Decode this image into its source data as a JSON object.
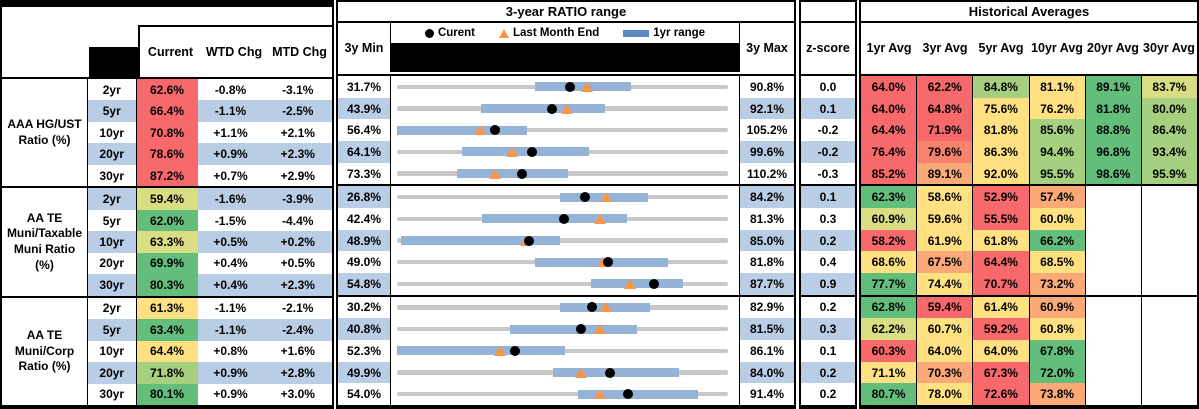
{
  "palette": {
    "r": "#F8696B",
    "ro": "#F9826E",
    "o": "#FBA977",
    "y": "#FFE182",
    "yg": "#D9DE82",
    "lg": "#A6D07F",
    "g": "#63BE7B",
    "rowBlue": "#B9CDE5",
    "barBlue": "#95B3D7",
    "trackGray": "#C8C8C8",
    "lmeOrange": "#F79646",
    "black": "#000000"
  },
  "header": {
    "range_title": "3-year RATIO range",
    "hist_title": "Historical Averages",
    "col_current": "Current",
    "col_wtd": "WTD Chg",
    "col_mtd": "MTD Chg",
    "col_3y_min": "3y Min",
    "col_3y_max": "3y Max",
    "col_zscore": "z-score",
    "avg_cols": [
      "1yr Avg",
      "3yr Avg",
      "5yr Avg",
      "10yr Avg",
      "20yr Avg",
      "30yr Avg"
    ],
    "legend": {
      "current": "Curent",
      "lme": "Last Month End",
      "range": "1yr range"
    }
  },
  "groups": [
    {
      "label": "AAA HG/UST\nRatio (%)",
      "rows": [
        {
          "tenor": "2yr",
          "current": "62.6%",
          "cc": "r",
          "wtd": "-0.8%",
          "mtd": "-3.1%",
          "min": "31.7%",
          "max": "90.8%",
          "z": "0.0",
          "chart": {
            "min": 31.7,
            "max": 90.8,
            "cur": 62.6,
            "lme": 65.6,
            "lo": 56.4,
            "hi": 73.5
          },
          "avgs": [
            {
              "t": "64.0%",
              "c": "r"
            },
            {
              "t": "62.2%",
              "c": "r"
            },
            {
              "t": "84.8%",
              "c": "lg"
            },
            {
              "t": "81.1%",
              "c": "y"
            },
            {
              "t": "89.1%",
              "c": "g"
            },
            {
              "t": "83.7%",
              "c": "yg"
            }
          ]
        },
        {
          "tenor": "5yr",
          "current": "66.4%",
          "cc": "r",
          "wtd": "-1.1%",
          "mtd": "-2.5%",
          "min": "43.9%",
          "max": "92.1%",
          "z": "0.1",
          "chart": {
            "min": 43.9,
            "max": 92.1,
            "cur": 66.4,
            "lme": 68.6,
            "lo": 56.2,
            "hi": 74.2
          },
          "avgs": [
            {
              "t": "64.0%",
              "c": "r"
            },
            {
              "t": "64.8%",
              "c": "r"
            },
            {
              "t": "75.6%",
              "c": "y"
            },
            {
              "t": "76.2%",
              "c": "y"
            },
            {
              "t": "81.8%",
              "c": "g"
            },
            {
              "t": "80.0%",
              "c": "lg"
            }
          ]
        },
        {
          "tenor": "10yr",
          "current": "70.8%",
          "cc": "r",
          "wtd": "+1.1%",
          "mtd": "+2.1%",
          "min": "56.4%",
          "max": "105.2%",
          "z": "-0.2",
          "chart": {
            "min": 56.4,
            "max": 105.2,
            "cur": 70.8,
            "lme": 68.7,
            "lo": 56.4,
            "hi": 75.5
          },
          "avgs": [
            {
              "t": "64.4%",
              "c": "r"
            },
            {
              "t": "71.9%",
              "c": "r"
            },
            {
              "t": "81.8%",
              "c": "y"
            },
            {
              "t": "85.6%",
              "c": "lg"
            },
            {
              "t": "88.8%",
              "c": "g"
            },
            {
              "t": "86.4%",
              "c": "lg"
            }
          ]
        },
        {
          "tenor": "20yr",
          "current": "78.6%",
          "cc": "r",
          "wtd": "+0.9%",
          "mtd": "+2.3%",
          "min": "64.1%",
          "max": "99.6%",
          "z": "-0.2",
          "chart": {
            "min": 64.1,
            "max": 99.6,
            "cur": 78.6,
            "lme": 76.4,
            "lo": 71.1,
            "hi": 84.7
          },
          "avgs": [
            {
              "t": "76.4%",
              "c": "r"
            },
            {
              "t": "79.6%",
              "c": "ro"
            },
            {
              "t": "86.3%",
              "c": "y"
            },
            {
              "t": "94.4%",
              "c": "lg"
            },
            {
              "t": "96.8%",
              "c": "g"
            },
            {
              "t": "93.4%",
              "c": "lg"
            }
          ]
        },
        {
          "tenor": "30yr",
          "current": "87.2%",
          "cc": "r",
          "wtd": "+0.7%",
          "mtd": "+2.9%",
          "min": "73.3%",
          "max": "110.2%",
          "z": "-0.3",
          "chart": {
            "min": 73.3,
            "max": 110.2,
            "cur": 87.2,
            "lme": 84.2,
            "lo": 80.0,
            "hi": 92.4
          },
          "avgs": [
            {
              "t": "85.2%",
              "c": "r"
            },
            {
              "t": "89.1%",
              "c": "o"
            },
            {
              "t": "92.0%",
              "c": "y"
            },
            {
              "t": "95.5%",
              "c": "lg"
            },
            {
              "t": "98.6%",
              "c": "g"
            },
            {
              "t": "95.9%",
              "c": "lg"
            }
          ]
        }
      ]
    },
    {
      "label": "AA TE\nMuni/Taxable\nMuni Ratio\n(%)",
      "rows": [
        {
          "tenor": "2yr",
          "current": "59.4%",
          "cc": "yg",
          "wtd": "-1.6%",
          "mtd": "-3.9%",
          "min": "26.8%",
          "max": "84.2%",
          "z": "0.1",
          "chart": {
            "min": 26.8,
            "max": 84.2,
            "cur": 59.4,
            "lme": 63.1,
            "lo": 55.0,
            "hi": 70.4
          },
          "avgs": [
            {
              "t": "62.3%",
              "c": "g"
            },
            {
              "t": "58.6%",
              "c": "y"
            },
            {
              "t": "52.9%",
              "c": "r"
            },
            {
              "t": "57.4%",
              "c": "o"
            },
            {
              "t": "",
              "c": null
            },
            {
              "t": "",
              "c": null
            }
          ]
        },
        {
          "tenor": "5yr",
          "current": "62.0%",
          "cc": "g",
          "wtd": "-1.5%",
          "mtd": "-4.4%",
          "min": "42.4%",
          "max": "81.3%",
          "z": "0.3",
          "chart": {
            "min": 42.4,
            "max": 81.3,
            "cur": 62.0,
            "lme": 66.2,
            "lo": 52.4,
            "hi": 69.4
          },
          "avgs": [
            {
              "t": "60.9%",
              "c": "yg"
            },
            {
              "t": "59.6%",
              "c": "y"
            },
            {
              "t": "55.5%",
              "c": "r"
            },
            {
              "t": "60.0%",
              "c": "y"
            },
            {
              "t": "",
              "c": null
            },
            {
              "t": "",
              "c": null
            }
          ]
        },
        {
          "tenor": "10yr",
          "current": "63.3%",
          "cc": "yg",
          "wtd": "+0.5%",
          "mtd": "+0.2%",
          "min": "48.9%",
          "max": "85.0%",
          "z": "0.2",
          "chart": {
            "min": 48.9,
            "max": 85.0,
            "cur": 63.3,
            "lme": 63.0,
            "lo": 49.3,
            "hi": 66.7
          },
          "avgs": [
            {
              "t": "58.2%",
              "c": "r"
            },
            {
              "t": "61.9%",
              "c": "y"
            },
            {
              "t": "61.8%",
              "c": "y"
            },
            {
              "t": "66.2%",
              "c": "g"
            },
            {
              "t": "",
              "c": null
            },
            {
              "t": "",
              "c": null
            }
          ]
        },
        {
          "tenor": "20yr",
          "current": "69.9%",
          "cc": "g",
          "wtd": "+0.4%",
          "mtd": "+0.5%",
          "min": "49.0%",
          "max": "81.8%",
          "z": "0.4",
          "chart": {
            "min": 49.0,
            "max": 81.8,
            "cur": 69.9,
            "lme": 69.4,
            "lo": 62.7,
            "hi": 75.9
          },
          "avgs": [
            {
              "t": "68.6%",
              "c": "y"
            },
            {
              "t": "67.5%",
              "c": "o"
            },
            {
              "t": "64.4%",
              "c": "r"
            },
            {
              "t": "68.5%",
              "c": "y"
            },
            {
              "t": "",
              "c": null
            },
            {
              "t": "",
              "c": null
            }
          ]
        },
        {
          "tenor": "30yr",
          "current": "80.3%",
          "cc": "g",
          "wtd": "+0.4%",
          "mtd": "+2.3%",
          "min": "54.8%",
          "max": "87.7%",
          "z": "0.9",
          "chart": {
            "min": 54.8,
            "max": 87.7,
            "cur": 80.3,
            "lme": 78.0,
            "lo": 74.1,
            "hi": 83.2
          },
          "avgs": [
            {
              "t": "77.7%",
              "c": "g"
            },
            {
              "t": "74.4%",
              "c": "y"
            },
            {
              "t": "70.7%",
              "c": "r"
            },
            {
              "t": "73.2%",
              "c": "o"
            },
            {
              "t": "",
              "c": null
            },
            {
              "t": "",
              "c": null
            }
          ]
        }
      ]
    },
    {
      "label": "AA TE\nMuni/Corp\nRatio (%)",
      "rows": [
        {
          "tenor": "2yr",
          "current": "61.3%",
          "cc": "y",
          "wtd": "-1.1%",
          "mtd": "-2.1%",
          "min": "30.2%",
          "max": "82.9%",
          "z": "0.2",
          "chart": {
            "min": 30.2,
            "max": 82.9,
            "cur": 61.3,
            "lme": 63.4,
            "lo": 56.2,
            "hi": 70.5
          },
          "avgs": [
            {
              "t": "62.8%",
              "c": "g"
            },
            {
              "t": "59.4%",
              "c": "r"
            },
            {
              "t": "61.4%",
              "c": "y"
            },
            {
              "t": "60.9%",
              "c": "o"
            },
            {
              "t": "",
              "c": null
            },
            {
              "t": "",
              "c": null
            }
          ]
        },
        {
          "tenor": "5yr",
          "current": "63.4%",
          "cc": "g",
          "wtd": "-1.1%",
          "mtd": "-2.4%",
          "min": "40.8%",
          "max": "81.5%",
          "z": "0.3",
          "chart": {
            "min": 40.8,
            "max": 81.5,
            "cur": 63.4,
            "lme": 65.7,
            "lo": 54.7,
            "hi": 70.3
          },
          "avgs": [
            {
              "t": "62.2%",
              "c": "yg"
            },
            {
              "t": "60.7%",
              "c": "y"
            },
            {
              "t": "59.2%",
              "c": "r"
            },
            {
              "t": "60.8%",
              "c": "y"
            },
            {
              "t": "",
              "c": null
            },
            {
              "t": "",
              "c": null
            }
          ]
        },
        {
          "tenor": "10yr",
          "current": "64.4%",
          "cc": "y",
          "wtd": "+0.8%",
          "mtd": "+1.6%",
          "min": "52.3%",
          "max": "86.1%",
          "z": "0.1",
          "chart": {
            "min": 52.3,
            "max": 86.1,
            "cur": 64.4,
            "lme": 62.8,
            "lo": 52.3,
            "hi": 69.5
          },
          "avgs": [
            {
              "t": "60.3%",
              "c": "r"
            },
            {
              "t": "64.0%",
              "c": "y"
            },
            {
              "t": "64.0%",
              "c": "y"
            },
            {
              "t": "67.8%",
              "c": "g"
            },
            {
              "t": "",
              "c": null
            },
            {
              "t": "",
              "c": null
            }
          ]
        },
        {
          "tenor": "20yr",
          "current": "71.8%",
          "cc": "lg",
          "wtd": "+0.9%",
          "mtd": "+2.8%",
          "min": "49.9%",
          "max": "84.0%",
          "z": "0.2",
          "chart": {
            "min": 49.9,
            "max": 84.0,
            "cur": 71.8,
            "lme": 68.9,
            "lo": 66.0,
            "hi": 79.0
          },
          "avgs": [
            {
              "t": "71.1%",
              "c": "y"
            },
            {
              "t": "70.3%",
              "c": "o"
            },
            {
              "t": "67.3%",
              "c": "r"
            },
            {
              "t": "72.0%",
              "c": "g"
            },
            {
              "t": "",
              "c": null
            },
            {
              "t": "",
              "c": null
            }
          ]
        },
        {
          "tenor": "30yr",
          "current": "80.1%",
          "cc": "g",
          "wtd": "+0.9%",
          "mtd": "+3.0%",
          "min": "54.0%",
          "max": "91.4%",
          "z": "0.2",
          "chart": {
            "min": 54.0,
            "max": 91.4,
            "cur": 80.1,
            "lme": 76.9,
            "lo": 74.5,
            "hi": 88.0
          },
          "avgs": [
            {
              "t": "80.7%",
              "c": "g"
            },
            {
              "t": "78.0%",
              "c": "y"
            },
            {
              "t": "72.6%",
              "c": "r"
            },
            {
              "t": "73.8%",
              "c": "o"
            },
            {
              "t": "",
              "c": null
            },
            {
              "t": "",
              "c": null
            }
          ]
        }
      ]
    }
  ]
}
